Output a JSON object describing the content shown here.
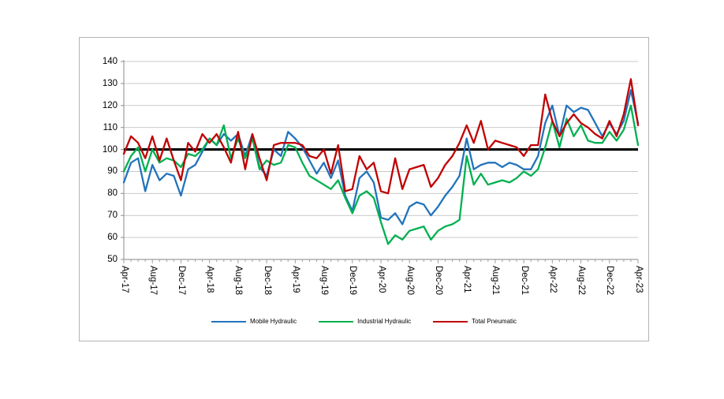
{
  "page": {
    "background": "#ffffff"
  },
  "axes": {
    "y_tick_labels": [
      "140",
      "130",
      "120",
      "110",
      "100",
      "90",
      "80",
      "70",
      "60",
      "50"
    ],
    "x_tick_labels": [
      "Apr-17",
      "Aug-17",
      "Dec-17",
      "Apr-18",
      "Aug-18",
      "Dec-18",
      "Apr-19",
      "Aug-19",
      "Dec-19",
      "Apr-20",
      "Aug-20",
      "Dec-20",
      "Apr-21",
      "Aug-21",
      "Dec-21",
      "Apr-22",
      "Aug-22",
      "Dec-22",
      "Apr-23"
    ]
  },
  "chart_data": {
    "type": "line",
    "title": "",
    "xlabel": "",
    "ylabel": "",
    "ylim": [
      50,
      140
    ],
    "y_tick_step": 10,
    "grid": "horizontal",
    "legend_position": "bottom",
    "n_points": 73,
    "x_start": "Apr-17",
    "x_end": "Apr-23",
    "x_interval": "monthly",
    "x_tick_every_n_months": 4,
    "x_tick_labels": [
      "Apr-17",
      "Aug-17",
      "Dec-17",
      "Apr-18",
      "Aug-18",
      "Dec-18",
      "Apr-19",
      "Aug-19",
      "Dec-19",
      "Apr-20",
      "Aug-20",
      "Dec-20",
      "Apr-21",
      "Aug-21",
      "Dec-21",
      "Apr-22",
      "Aug-22",
      "Dec-22",
      "Apr-23"
    ],
    "reference_line": {
      "value": 100,
      "color": "#000000"
    },
    "series": [
      {
        "name": "Mobile Hydraulic",
        "color": "#2273bc",
        "values": [
          85,
          94,
          96,
          81,
          93,
          86,
          89,
          88,
          79,
          91,
          93,
          99,
          105,
          102,
          107,
          104,
          107,
          97,
          107,
          92,
          88,
          100,
          97,
          108,
          105,
          101,
          95,
          89,
          94,
          87,
          95,
          79,
          72,
          87,
          90,
          85,
          69,
          68,
          71,
          66,
          74,
          76,
          75,
          70,
          74,
          79,
          83,
          88,
          105,
          91,
          93,
          94,
          94,
          92,
          94,
          93,
          91,
          91,
          97,
          112,
          120,
          106,
          120,
          117,
          119,
          118,
          112,
          106,
          112,
          107,
          113,
          127,
          112
        ]
      },
      {
        "name": "Industrial Hydraulic",
        "color": "#00b050",
        "values": [
          90,
          97,
          101,
          90,
          100,
          94,
          96,
          95,
          92,
          98,
          97,
          100,
          105,
          102,
          111,
          96,
          105,
          96,
          105,
          91,
          95,
          93,
          94,
          102,
          101,
          94,
          88,
          86,
          84,
          82,
          86,
          78,
          71,
          79,
          81,
          78,
          67,
          57,
          61,
          59,
          63,
          64,
          65,
          59,
          63,
          65,
          66,
          68,
          97,
          84,
          89,
          84,
          85,
          86,
          85,
          87,
          90,
          88,
          91,
          101,
          113,
          101,
          114,
          106,
          111,
          104,
          103,
          103,
          108,
          104,
          109,
          120,
          102
        ]
      },
      {
        "name": "Total Pneumatic",
        "color": "#c00000",
        "values": [
          98,
          106,
          103,
          96,
          106,
          95,
          105,
          95,
          86,
          103,
          99,
          107,
          103,
          107,
          101,
          94,
          108,
          91,
          107,
          96,
          86,
          102,
          103,
          103,
          103,
          102,
          97,
          96,
          100,
          89,
          102,
          81,
          82,
          97,
          91,
          94,
          81,
          80,
          96,
          82,
          91,
          92,
          93,
          83,
          87,
          93,
          97,
          103,
          111,
          103,
          113,
          100,
          104,
          103,
          102,
          101,
          97,
          102,
          102,
          125,
          113,
          106,
          112,
          116,
          112,
          110,
          107,
          105,
          113,
          106,
          116,
          132,
          111
        ]
      }
    ],
    "style_colors": {
      "gridline": "#c9c9c9",
      "axis": "#9e9e9e",
      "chart_border": "#b4b4b4",
      "reference_line": "#000000"
    }
  }
}
